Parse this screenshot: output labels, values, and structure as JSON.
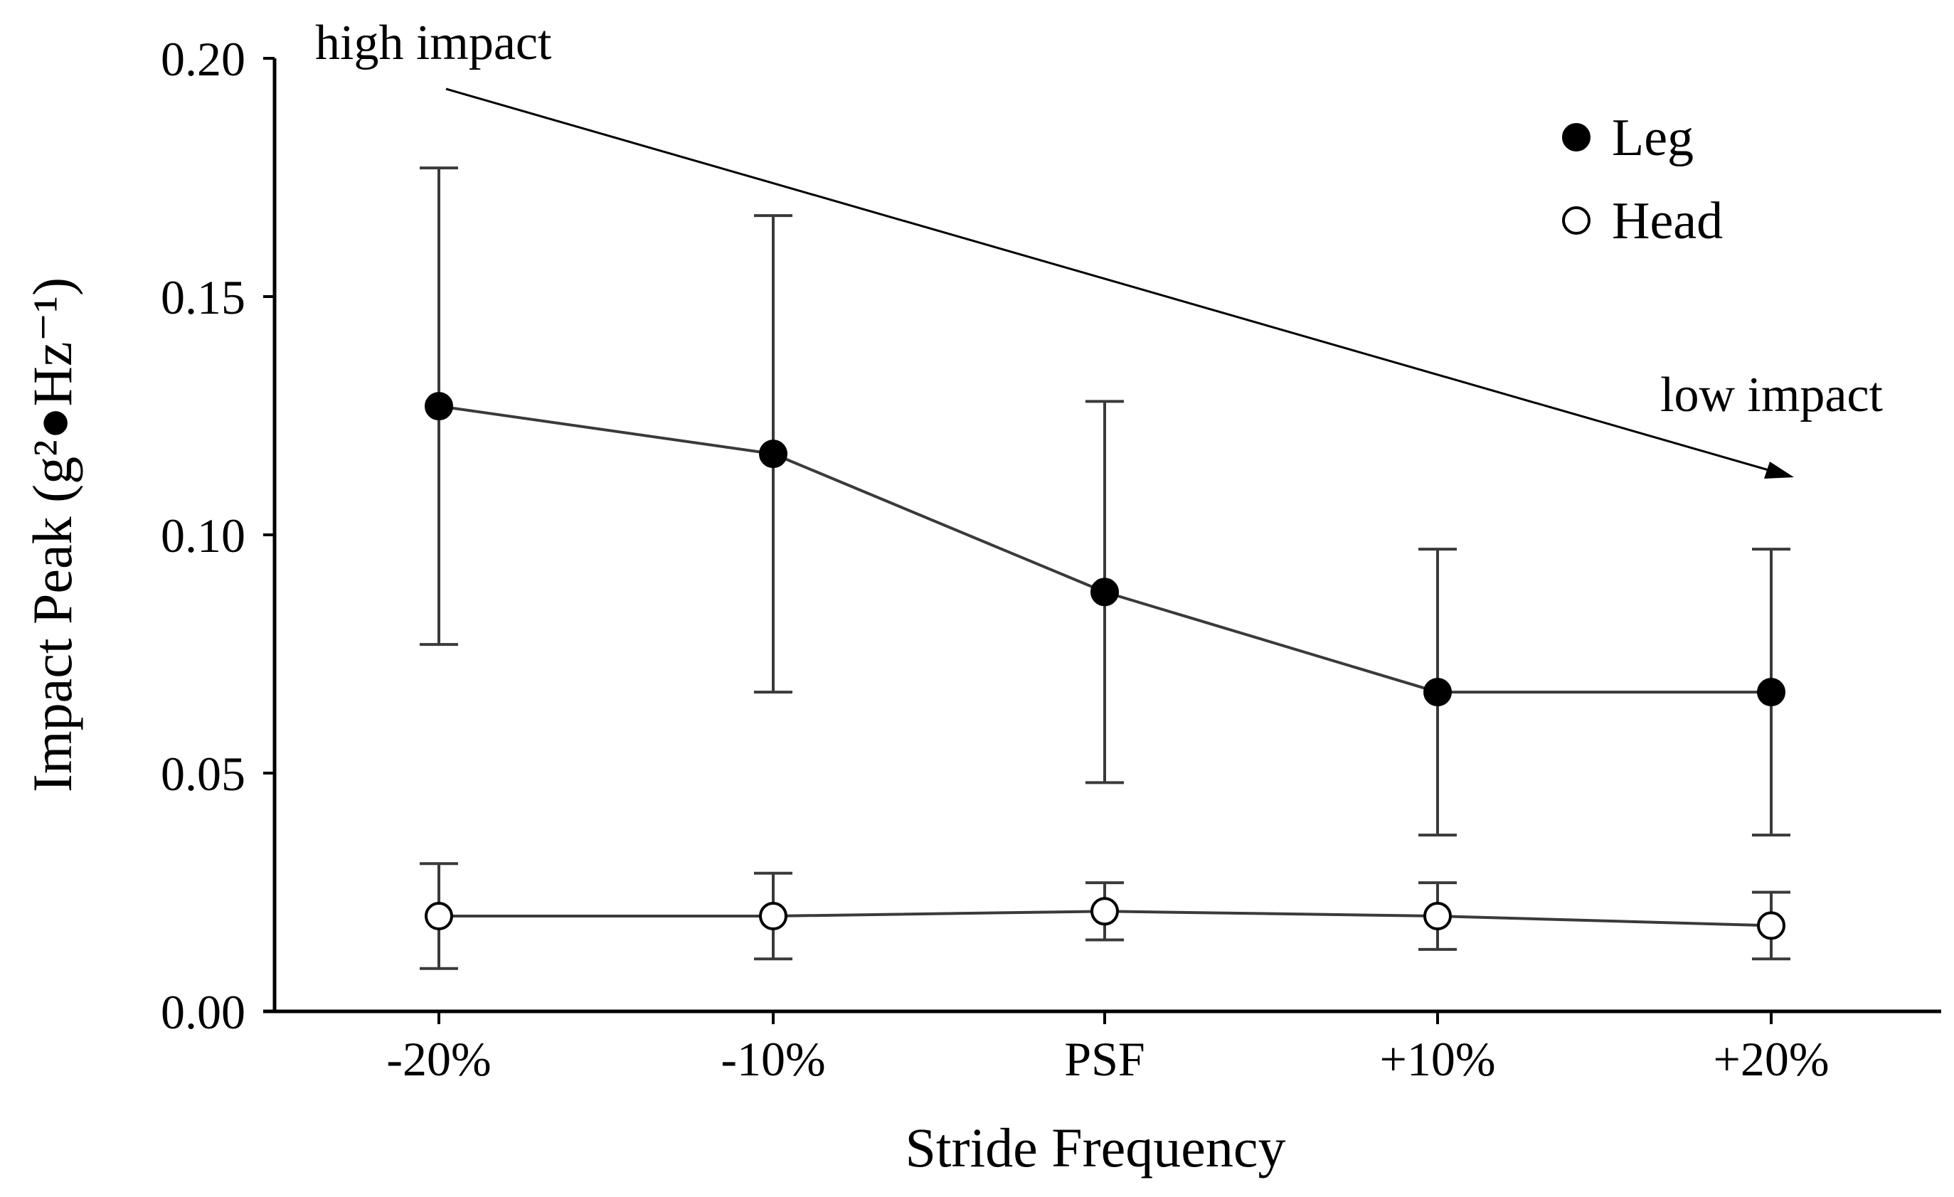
{
  "chart_data": {
    "type": "line",
    "categories": [
      "-20%",
      "-10%",
      "PSF",
      "+10%",
      "+20%"
    ],
    "xlabel": "Stride Frequency",
    "ylabel": "Impact Peak (g²●Hz⁻¹)",
    "ylim": [
      0,
      0.2
    ],
    "yticks": [
      0.0,
      0.05,
      0.1,
      0.15,
      0.2
    ],
    "ytick_labels": [
      "0.00",
      "0.05",
      "0.10",
      "0.15",
      "0.20"
    ],
    "grid": false,
    "legend_position": "top-right",
    "series": [
      {
        "name": "Leg",
        "marker": "filled-circle",
        "values": [
          0.127,
          0.117,
          0.088,
          0.067,
          0.067
        ],
        "err_low": [
          0.077,
          0.067,
          0.048,
          0.037,
          0.037
        ],
        "err_high": [
          0.177,
          0.167,
          0.128,
          0.097,
          0.097
        ]
      },
      {
        "name": "Head",
        "marker": "open-circle",
        "values": [
          0.02,
          0.02,
          0.021,
          0.02,
          0.018
        ],
        "err_low": [
          0.009,
          0.011,
          0.015,
          0.013,
          0.011
        ],
        "err_high": [
          0.031,
          0.029,
          0.027,
          0.027,
          0.025
        ]
      }
    ],
    "annotations": {
      "high": "high impact",
      "low": "low impact"
    },
    "colors": {
      "line": "#3a3a3a",
      "axis": "#000000",
      "leg_fill": "#000000",
      "head_fill": "#ffffff"
    }
  }
}
